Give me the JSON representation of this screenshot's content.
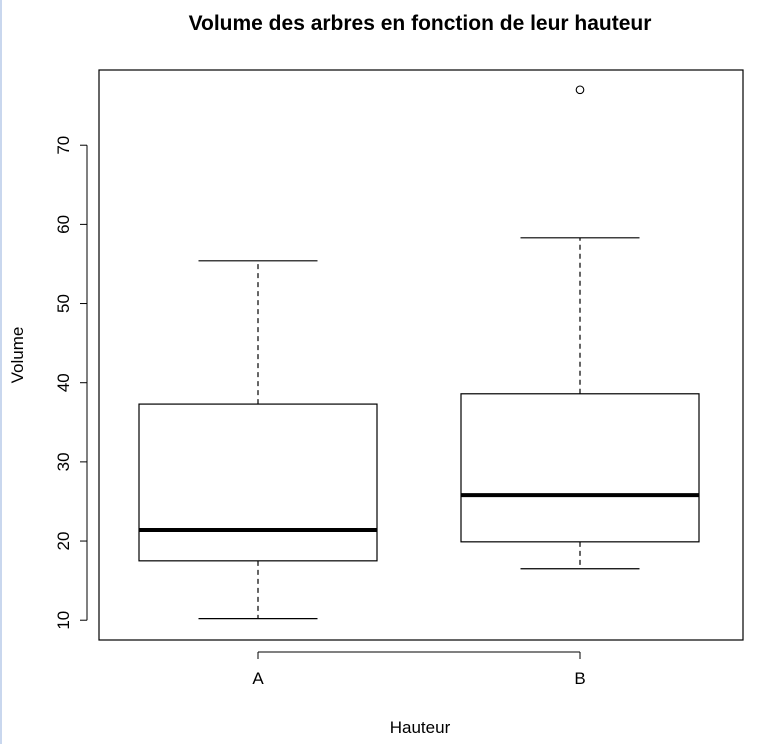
{
  "chart_data": {
    "type": "boxplot",
    "title": "Volume des arbres en fonction de leur hauteur",
    "xlabel": "Hauteur",
    "ylabel": "Volume",
    "categories": [
      "A",
      "B"
    ],
    "boxes": [
      {
        "category": "A",
        "whisker_low": 10.2,
        "q1": 17.5,
        "median": 21.4,
        "q3": 37.3,
        "whisker_high": 55.4,
        "outliers": []
      },
      {
        "category": "B",
        "whisker_low": 16.5,
        "q1": 19.9,
        "median": 25.8,
        "q3": 38.6,
        "whisker_high": 58.3,
        "outliers": [
          77.0
        ]
      }
    ],
    "yticks": [
      10,
      20,
      30,
      40,
      50,
      60,
      70
    ],
    "ylim": [
      7.5,
      79.5
    ],
    "grid": false,
    "legend": false
  }
}
